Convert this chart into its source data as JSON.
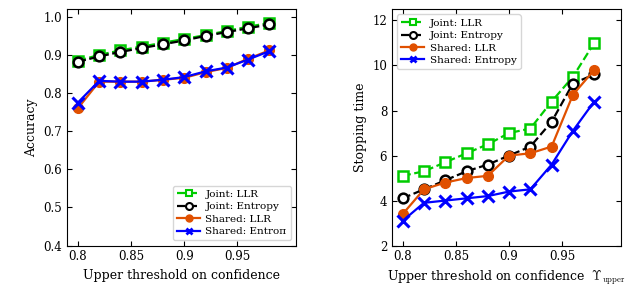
{
  "x_values": [
    0.8,
    0.82,
    0.84,
    0.86,
    0.88,
    0.9,
    0.92,
    0.94,
    0.96,
    0.98
  ],
  "acc_joint_llr": [
    0.885,
    0.9,
    0.912,
    0.922,
    0.932,
    0.942,
    0.952,
    0.963,
    0.974,
    0.984
  ],
  "acc_joint_entropy": [
    0.882,
    0.896,
    0.908,
    0.918,
    0.928,
    0.938,
    0.95,
    0.96,
    0.97,
    0.98
  ],
  "acc_shared_llr": [
    0.76,
    0.83,
    0.83,
    0.83,
    0.835,
    0.84,
    0.855,
    0.866,
    0.89,
    0.912
  ],
  "acc_shared_entropy": [
    0.775,
    0.832,
    0.83,
    0.83,
    0.835,
    0.842,
    0.857,
    0.867,
    0.888,
    0.91
  ],
  "st_joint_llr": [
    5.1,
    5.3,
    5.7,
    6.1,
    6.5,
    7.0,
    7.2,
    8.4,
    9.5,
    11.0
  ],
  "st_joint_entropy": [
    4.1,
    4.5,
    4.9,
    5.3,
    5.6,
    6.0,
    6.4,
    7.5,
    9.2,
    9.6
  ],
  "st_shared_llr": [
    3.4,
    4.5,
    4.8,
    5.0,
    5.1,
    6.0,
    6.1,
    6.4,
    8.7,
    9.8
  ],
  "st_shared_entropy": [
    3.1,
    3.9,
    4.0,
    4.1,
    4.2,
    4.4,
    4.5,
    5.6,
    7.1,
    8.4
  ],
  "color_joint_llr": "#00cc00",
  "color_joint_entropy": "#000000",
  "color_shared_llr": "#e05000",
  "color_shared_entropy": "#0000ff",
  "acc_ylim": [
    0.4,
    1.02
  ],
  "acc_yticks": [
    0.4,
    0.5,
    0.6,
    0.7,
    0.8,
    0.9,
    1.0
  ],
  "st_ylim": [
    2,
    12.5
  ],
  "st_yticks": [
    2,
    4,
    6,
    8,
    10,
    12
  ],
  "xlabel1": "Upper threshold on confidence",
  "xlabel2": "Upper threshold on confidence  $\\Upsilon_{\\mathrm{upper}}$",
  "ylabel1": "Accuracy",
  "ylabel2": "Stopping time",
  "xlim": [
    0.79,
    1.005
  ],
  "xticks": [
    0.8,
    0.85,
    0.9,
    0.95
  ],
  "xtick_labels": [
    "0.8",
    "0.85",
    "0.9",
    "0.95"
  ]
}
